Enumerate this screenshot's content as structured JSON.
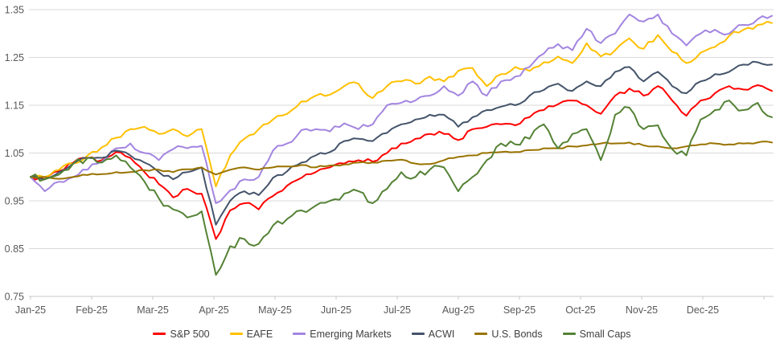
{
  "chart_data": {
    "type": "line",
    "title": "",
    "grid": "horizontal",
    "legend_position": "bottom",
    "x_axis": {
      "tick_labels": [
        "Jan-25",
        "Feb-25",
        "Mar-25",
        "Apr-25",
        "May-25",
        "Jun-25",
        "Jul-25",
        "Aug-25",
        "Sep-25",
        "Oct-25",
        "Nov-25",
        "Dec-25"
      ],
      "points_per_series": 53,
      "unit": "weekly cumulative growth of 1.00"
    },
    "y_axis": {
      "tick_labels": [
        "1.35",
        "1.25",
        "1.15",
        "1.05",
        "0.95",
        "0.85",
        "0.75"
      ],
      "min": 0.75,
      "max": 1.35
    },
    "series": [
      {
        "name": "S&P 500",
        "color": "#FF0000",
        "jitter": 0.005,
        "values": [
          1.0,
          0.995,
          1.012,
          1.03,
          1.04,
          1.035,
          1.052,
          1.04,
          1.01,
          0.985,
          0.957,
          0.975,
          0.965,
          0.87,
          0.93,
          0.945,
          0.932,
          0.96,
          0.982,
          0.998,
          1.01,
          1.02,
          1.028,
          1.035,
          1.032,
          1.05,
          1.07,
          1.08,
          1.09,
          1.09,
          1.077,
          1.1,
          1.105,
          1.11,
          1.108,
          1.125,
          1.14,
          1.152,
          1.16,
          1.15,
          1.132,
          1.17,
          1.185,
          1.17,
          1.19,
          1.16,
          1.128,
          1.16,
          1.175,
          1.19,
          1.183,
          1.192,
          1.18
        ]
      },
      {
        "name": "EAFE",
        "color": "#FFC000",
        "jitter": 0.005,
        "values": [
          1.0,
          1.0,
          1.015,
          1.028,
          1.045,
          1.062,
          1.082,
          1.1,
          1.105,
          1.09,
          1.1,
          1.085,
          1.1,
          0.98,
          1.045,
          1.08,
          1.1,
          1.12,
          1.132,
          1.158,
          1.17,
          1.172,
          1.19,
          1.195,
          1.165,
          1.19,
          1.2,
          1.195,
          1.21,
          1.2,
          1.222,
          1.228,
          1.19,
          1.215,
          1.23,
          1.222,
          1.24,
          1.252,
          1.238,
          1.28,
          1.252,
          1.265,
          1.29,
          1.268,
          1.297,
          1.262,
          1.238,
          1.26,
          1.272,
          1.295,
          1.308,
          1.318,
          1.322
        ]
      },
      {
        "name": "Emerging Markets",
        "color": "#A385E0",
        "jitter": 0.006,
        "values": [
          1.0,
          0.97,
          0.99,
          1.0,
          1.015,
          1.032,
          1.06,
          1.07,
          1.05,
          1.035,
          1.058,
          1.06,
          1.065,
          0.945,
          0.972,
          0.995,
          1.0,
          1.055,
          1.07,
          1.098,
          1.1,
          1.095,
          1.112,
          1.1,
          1.11,
          1.15,
          1.155,
          1.16,
          1.17,
          1.19,
          1.17,
          1.2,
          1.17,
          1.2,
          1.21,
          1.23,
          1.258,
          1.278,
          1.265,
          1.31,
          1.28,
          1.3,
          1.34,
          1.325,
          1.34,
          1.3,
          1.275,
          1.3,
          1.308,
          1.3,
          1.318,
          1.33,
          1.337
        ]
      },
      {
        "name": "ACWI",
        "color": "#44546A",
        "jitter": 0.004,
        "values": [
          1.0,
          0.995,
          1.01,
          1.028,
          1.04,
          1.04,
          1.055,
          1.045,
          1.03,
          1.01,
          0.995,
          1.01,
          1.02,
          0.9,
          0.95,
          0.97,
          0.962,
          0.998,
          1.012,
          1.03,
          1.045,
          1.052,
          1.075,
          1.08,
          1.075,
          1.092,
          1.11,
          1.12,
          1.13,
          1.13,
          1.105,
          1.125,
          1.14,
          1.147,
          1.15,
          1.17,
          1.182,
          1.195,
          1.18,
          1.2,
          1.19,
          1.22,
          1.23,
          1.2,
          1.22,
          1.19,
          1.175,
          1.2,
          1.215,
          1.22,
          1.235,
          1.24,
          1.235
        ]
      },
      {
        "name": "U.S. Bonds",
        "color": "#997300",
        "jitter": 0.002,
        "values": [
          1.0,
          1.0,
          0.996,
          1.0,
          1.004,
          1.006,
          1.01,
          1.01,
          1.014,
          1.015,
          1.01,
          1.016,
          1.02,
          1.005,
          1.015,
          1.02,
          1.015,
          1.02,
          1.022,
          1.025,
          1.02,
          1.024,
          1.026,
          1.03,
          1.03,
          1.034,
          1.036,
          1.028,
          1.027,
          1.035,
          1.042,
          1.045,
          1.05,
          1.052,
          1.052,
          1.056,
          1.06,
          1.06,
          1.064,
          1.066,
          1.07,
          1.07,
          1.072,
          1.066,
          1.064,
          1.06,
          1.064,
          1.068,
          1.07,
          1.068,
          1.07,
          1.072,
          1.072
        ]
      },
      {
        "name": "Small Caps",
        "color": "#548235",
        "jitter": 0.008,
        "values": [
          1.0,
          0.995,
          1.005,
          1.028,
          1.04,
          1.03,
          1.045,
          1.02,
          0.99,
          0.955,
          0.932,
          0.915,
          0.928,
          0.795,
          0.855,
          0.87,
          0.86,
          0.898,
          0.912,
          0.93,
          0.94,
          0.95,
          0.965,
          0.97,
          0.945,
          0.975,
          1.01,
          1.0,
          1.015,
          1.02,
          0.97,
          1.0,
          1.035,
          1.07,
          1.068,
          1.08,
          1.11,
          1.06,
          1.09,
          1.1,
          1.035,
          1.13,
          1.145,
          1.1,
          1.108,
          1.058,
          1.045,
          1.12,
          1.14,
          1.16,
          1.14,
          1.155,
          1.125
        ]
      }
    ]
  },
  "colors": {
    "background": "#FFFFFF",
    "gridline": "#D9D9D9",
    "axis_line": "#C9C9C9",
    "axis_label": "#595959",
    "legend_text": "#404040"
  }
}
